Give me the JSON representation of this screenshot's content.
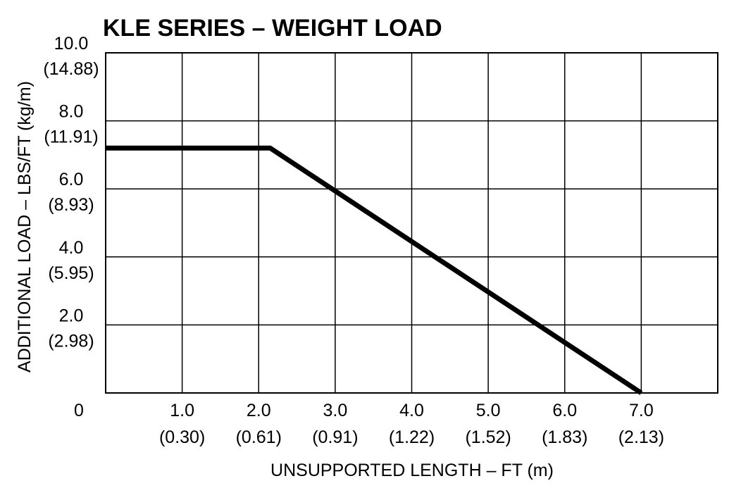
{
  "chart_data": {
    "type": "line",
    "title": "KLE SERIES – WEIGHT LOAD",
    "xlabel": "UNSUPPORTED LENGTH – FT (m)",
    "ylabel": "ADDITIONAL LOAD – LBS/FT (kg/m)",
    "xlim": [
      0,
      8
    ],
    "ylim": [
      0,
      10
    ],
    "grid": true,
    "x_ticks": [
      {
        "value": 1,
        "label": "1.0",
        "sublabel": "(0.30)"
      },
      {
        "value": 2,
        "label": "2.0",
        "sublabel": "(0.61)"
      },
      {
        "value": 3,
        "label": "3.0",
        "sublabel": "(0.91)"
      },
      {
        "value": 4,
        "label": "4.0",
        "sublabel": "(1.22)"
      },
      {
        "value": 5,
        "label": "5.0",
        "sublabel": "(1.52)"
      },
      {
        "value": 6,
        "label": "6.0",
        "sublabel": "(1.83)"
      },
      {
        "value": 7,
        "label": "7.0",
        "sublabel": "(2.13)"
      }
    ],
    "y_ticks": [
      {
        "value": 2,
        "label": "2.0",
        "sublabel": "(2.98)"
      },
      {
        "value": 4,
        "label": "4.0",
        "sublabel": "(5.95)"
      },
      {
        "value": 6,
        "label": "6.0",
        "sublabel": "(8.93)"
      },
      {
        "value": 8,
        "label": "8.0",
        "sublabel": "(11.91)"
      },
      {
        "value": 10,
        "label": "10.0",
        "sublabel": "(14.88)"
      }
    ],
    "origin_label": "0",
    "series": [
      {
        "color": "#000000",
        "points": [
          {
            "x": 0,
            "y": 7.2
          },
          {
            "x": 2.15,
            "y": 7.2
          },
          {
            "x": 7.0,
            "y": 0
          }
        ]
      }
    ]
  }
}
